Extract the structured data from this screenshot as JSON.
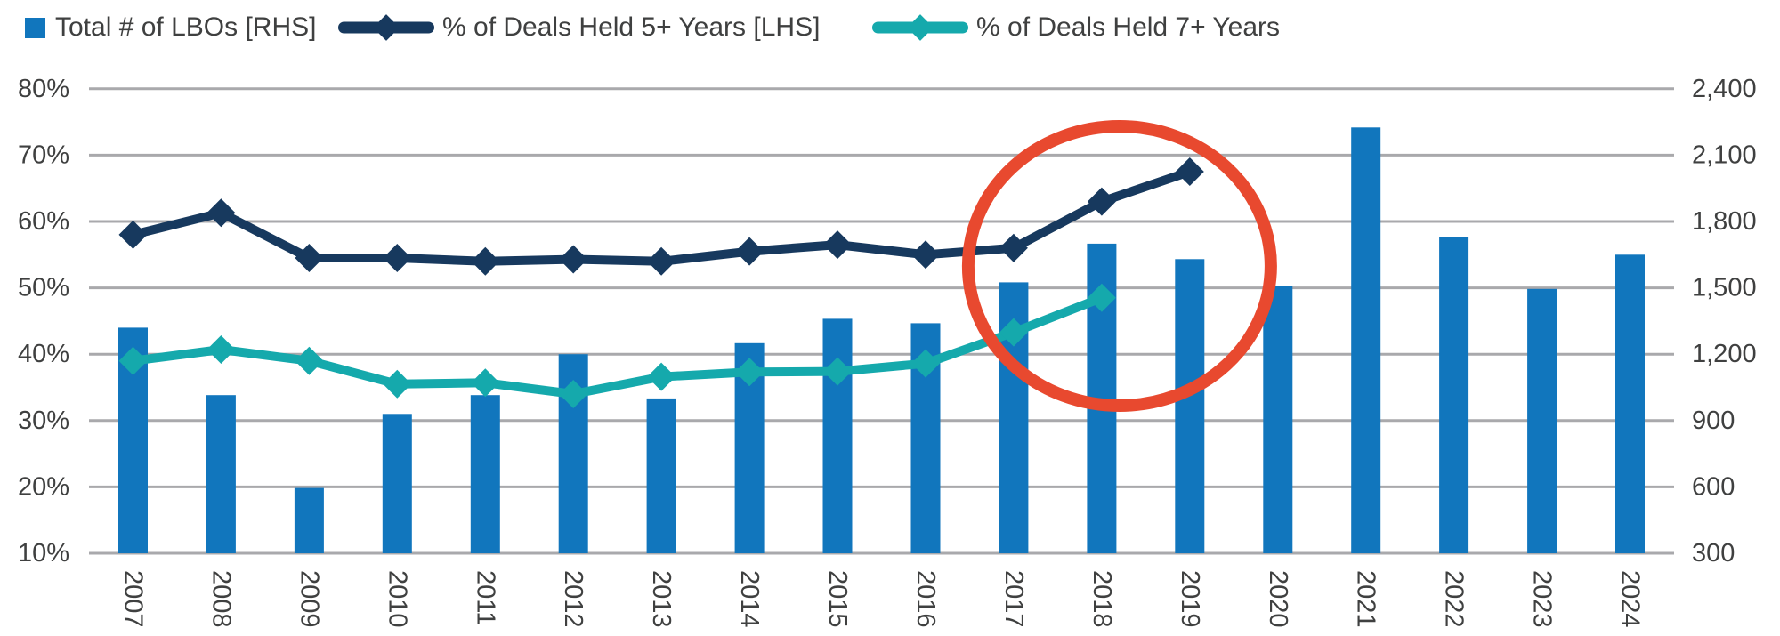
{
  "legend": {
    "items": [
      {
        "label": "Total # of LBOs [RHS]",
        "marker": "square",
        "color": "#1176BD"
      },
      {
        "label": "% of Deals Held 5+ Years [LHS]",
        "marker": "line-diamond",
        "color": "#17395E"
      },
      {
        "label": "% of Deals Held 7+ Years",
        "marker": "line-diamond",
        "color": "#15A9AC"
      }
    ]
  },
  "chart_data": {
    "type": "bar",
    "subtype": "combo bar+line, dual axis",
    "categories": [
      "2007",
      "2008",
      "2009",
      "2010",
      "2011",
      "2012",
      "2013",
      "2014",
      "2015",
      "2016",
      "2017",
      "2018",
      "2019",
      "2020",
      "2021",
      "2022",
      "2023",
      "2024"
    ],
    "series": [
      {
        "name": "Total # of LBOs [RHS]",
        "type": "bar",
        "axis": "right",
        "color": "#1176BD",
        "values": [
          1320,
          1015,
          595,
          930,
          1015,
          1200,
          1000,
          1250,
          1360,
          1340,
          1525,
          1700,
          1630,
          1510,
          2225,
          1730,
          1495,
          1650
        ]
      },
      {
        "name": "% of Deals Held 5+ Years [LHS]",
        "type": "line",
        "axis": "left",
        "color": "#17395E",
        "marker": "diamond",
        "values": [
          58,
          61.3,
          54.5,
          54.5,
          54,
          54.3,
          54,
          55.5,
          56.5,
          55,
          56,
          63,
          67.5,
          null,
          null,
          null,
          null,
          null
        ]
      },
      {
        "name": "% of Deals Held 7+ Years",
        "type": "line",
        "axis": "left",
        "color": "#15A9AC",
        "marker": "diamond",
        "values": [
          39,
          40.7,
          39,
          35.5,
          35.7,
          34,
          36.6,
          37.3,
          37.4,
          38.6,
          43.3,
          48.5,
          null,
          null,
          null,
          null,
          null,
          null
        ]
      }
    ],
    "left_axis": {
      "min": 10,
      "max": 80,
      "unit": "%",
      "ticks": [
        "80%",
        "70%",
        "60%",
        "50%",
        "40%",
        "30%",
        "20%",
        "10%"
      ]
    },
    "right_axis": {
      "min": 300,
      "max": 2400,
      "ticks": [
        "2,400",
        "2,100",
        "1,800",
        "1,500",
        "1,200",
        "900",
        "600",
        "300"
      ]
    },
    "grid": true,
    "legend_position": "top-left",
    "annotation": {
      "shape": "circle",
      "color": "#E8492F",
      "circled_years": [
        "2017",
        "2018",
        "2019"
      ],
      "meaning": "highlights rise of % of deals held 5+/7+ years"
    },
    "colors": {
      "bar": "#1176BD",
      "line_5plus": "#17395E",
      "line_7plus": "#15A9AC",
      "annotation": "#E8492F",
      "gridline": "#A9A9AC",
      "axis_text": "#3F4040"
    }
  }
}
